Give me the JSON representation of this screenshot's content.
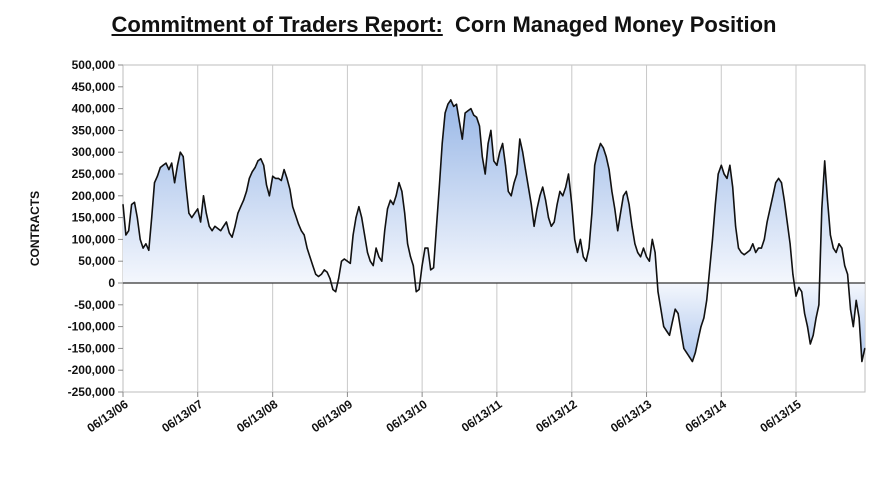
{
  "title_lead": "Commitment of Traders Report:",
  "title_rest": "Corn Managed Money Position",
  "chart_data": {
    "type": "area",
    "title": "Commitment of Traders Report: Corn Managed Money Position",
    "xlabel": "",
    "ylabel": "CONTRACTS",
    "ylim": [
      -250000,
      500000
    ],
    "y_ticks": [
      500000,
      450000,
      400000,
      350000,
      300000,
      250000,
      200000,
      150000,
      100000,
      50000,
      0,
      -50000,
      -100000,
      -150000,
      -200000,
      -250000
    ],
    "y_tick_labels": [
      "500,000",
      "450,000",
      "400,000",
      "350,000",
      "300,000",
      "250,000",
      "200,000",
      "150,000",
      "100,000",
      "50,000",
      "0",
      "-50,000",
      "-100,000",
      "-150,000",
      "-200,000",
      "-250,000"
    ],
    "xlim": [
      "06/13/06",
      "05/15/16"
    ],
    "x_ticks": [
      "06/13/06",
      "06/13/07",
      "06/13/08",
      "06/13/09",
      "06/13/10",
      "06/13/11",
      "06/13/12",
      "06/13/13",
      "06/13/14",
      "06/13/15"
    ],
    "grid": "vertical lines at x ticks",
    "fill": "gradient blue to white toward zero line",
    "series": [
      {
        "x": [
          "06/13/06",
          "06/27/06",
          "07/11/06",
          "07/25/06",
          "08/08/06",
          "08/22/06",
          "09/05/06",
          "09/19/06",
          "10/03/06",
          "10/17/06",
          "10/31/06",
          "11/14/06",
          "11/28/06",
          "12/12/06",
          "12/26/06",
          "01/09/07",
          "01/23/07",
          "02/06/07",
          "02/20/07",
          "03/06/07",
          "03/20/07",
          "04/03/07",
          "04/17/07",
          "05/01/07",
          "05/15/07",
          "05/29/07",
          "06/13/07",
          "06/27/07",
          "07/11/07",
          "07/25/07",
          "08/08/07",
          "08/22/07",
          "09/05/07",
          "09/19/07",
          "10/03/07",
          "10/17/07",
          "10/31/07",
          "11/14/07",
          "11/28/07",
          "12/12/07",
          "12/26/07",
          "01/09/08",
          "01/23/08",
          "02/06/08",
          "02/20/08",
          "03/05/08",
          "03/19/08",
          "04/02/08",
          "04/16/08",
          "04/30/08",
          "05/14/08",
          "05/28/08",
          "06/13/08",
          "06/27/08",
          "07/11/08",
          "07/25/08",
          "08/08/08",
          "08/22/08",
          "09/05/08",
          "09/19/08",
          "10/03/08",
          "10/17/08",
          "10/31/08",
          "11/14/08",
          "11/28/08",
          "12/12/08",
          "12/26/08",
          "01/09/09",
          "01/23/09",
          "02/06/09",
          "02/20/09",
          "03/06/09",
          "03/20/09",
          "04/03/09",
          "04/17/09",
          "05/01/09",
          "05/15/09",
          "05/29/09",
          "06/13/09",
          "06/27/09",
          "07/11/09",
          "07/25/09",
          "08/08/09",
          "08/22/09",
          "09/05/09",
          "09/19/09",
          "10/03/09",
          "10/17/09",
          "10/31/09",
          "11/14/09",
          "11/28/09",
          "12/12/09",
          "12/26/09",
          "01/09/10",
          "01/23/10",
          "02/06/10",
          "02/20/10",
          "03/06/10",
          "03/20/10",
          "04/03/10",
          "04/17/10",
          "05/01/10",
          "05/15/10",
          "05/29/10",
          "06/13/10",
          "06/27/10",
          "07/11/10",
          "07/25/10",
          "08/08/10",
          "08/22/10",
          "09/05/10",
          "09/19/10",
          "10/03/10",
          "10/17/10",
          "10/31/10",
          "11/14/10",
          "11/28/10",
          "12/12/10",
          "12/26/10",
          "01/09/11",
          "01/23/11",
          "02/06/11",
          "02/20/11",
          "03/06/11",
          "03/20/11",
          "04/03/11",
          "04/17/11",
          "05/01/11",
          "05/15/11",
          "05/29/11",
          "06/13/11",
          "06/27/11",
          "07/11/11",
          "07/25/11",
          "08/08/11",
          "08/22/11",
          "09/05/11",
          "09/19/11",
          "10/03/11",
          "10/17/11",
          "10/31/11",
          "11/14/11",
          "11/28/11",
          "12/12/11",
          "12/26/11",
          "01/09/12",
          "01/23/12",
          "02/06/12",
          "02/20/12",
          "03/05/12",
          "03/19/12",
          "04/02/12",
          "04/16/12",
          "04/30/12",
          "05/14/12",
          "05/28/12",
          "06/13/12",
          "06/27/12",
          "07/11/12",
          "07/25/12",
          "08/08/12",
          "08/22/12",
          "09/05/12",
          "09/19/12",
          "10/03/12",
          "10/17/12",
          "10/31/12",
          "11/14/12",
          "11/28/12",
          "12/12/12",
          "12/26/12",
          "01/09/13",
          "01/23/13",
          "02/06/13",
          "02/20/13",
          "03/06/13",
          "03/20/13",
          "04/03/13",
          "04/17/13",
          "05/01/13",
          "05/15/13",
          "05/29/13",
          "06/13/13",
          "06/27/13",
          "07/11/13",
          "07/25/13",
          "08/08/13",
          "08/22/13",
          "09/05/13",
          "09/19/13",
          "10/03/13",
          "10/17/13",
          "10/31/13",
          "11/14/13",
          "11/28/13",
          "12/12/13",
          "12/26/13",
          "01/09/14",
          "01/23/14",
          "02/06/14",
          "02/20/14",
          "03/06/14",
          "03/20/14",
          "04/03/14",
          "04/17/14",
          "05/01/14",
          "05/15/14",
          "05/29/14",
          "06/13/14",
          "06/27/14",
          "07/11/14",
          "07/25/14",
          "08/08/14",
          "08/22/14",
          "09/05/14",
          "09/19/14",
          "10/03/14",
          "10/17/14",
          "10/31/14",
          "11/14/14",
          "11/28/14",
          "12/12/14",
          "12/26/14",
          "01/09/15",
          "01/23/15",
          "02/06/15",
          "02/20/15",
          "03/06/15",
          "03/20/15",
          "04/03/15",
          "04/17/15",
          "05/01/15",
          "05/15/15",
          "05/29/15",
          "06/13/15",
          "06/27/15",
          "07/11/15",
          "07/25/15",
          "08/08/15",
          "08/22/15",
          "09/05/15",
          "09/19/15",
          "10/03/15",
          "10/17/15",
          "10/31/15",
          "11/14/15",
          "11/28/15",
          "12/12/15",
          "12/26/15",
          "01/09/16",
          "01/23/16",
          "02/06/16",
          "02/20/16",
          "03/05/16",
          "03/19/16",
          "04/02/16",
          "04/16/16",
          "04/30/16",
          "05/14/16"
        ],
        "values": [
          180000,
          110000,
          120000,
          180000,
          185000,
          150000,
          100000,
          80000,
          90000,
          75000,
          150000,
          230000,
          245000,
          265000,
          270000,
          275000,
          260000,
          275000,
          230000,
          270000,
          300000,
          290000,
          220000,
          160000,
          150000,
          160000,
          170000,
          140000,
          200000,
          160000,
          130000,
          120000,
          130000,
          125000,
          120000,
          130000,
          140000,
          115000,
          105000,
          130000,
          160000,
          175000,
          190000,
          210000,
          240000,
          255000,
          265000,
          280000,
          285000,
          270000,
          225000,
          200000,
          245000,
          240000,
          240000,
          235000,
          260000,
          240000,
          215000,
          175000,
          155000,
          135000,
          120000,
          110000,
          80000,
          60000,
          40000,
          20000,
          15000,
          20000,
          30000,
          25000,
          10000,
          -15000,
          -20000,
          10000,
          50000,
          55000,
          50000,
          45000,
          110000,
          150000,
          175000,
          150000,
          110000,
          70000,
          50000,
          40000,
          80000,
          60000,
          50000,
          120000,
          170000,
          190000,
          180000,
          200000,
          230000,
          210000,
          160000,
          90000,
          60000,
          40000,
          -20000,
          -15000,
          40000,
          80000,
          80000,
          30000,
          35000,
          130000,
          220000,
          320000,
          390000,
          410000,
          420000,
          405000,
          410000,
          370000,
          330000,
          390000,
          395000,
          400000,
          385000,
          380000,
          360000,
          290000,
          250000,
          320000,
          350000,
          280000,
          270000,
          300000,
          320000,
          270000,
          210000,
          200000,
          230000,
          250000,
          330000,
          300000,
          260000,
          220000,
          180000,
          130000,
          170000,
          200000,
          220000,
          190000,
          150000,
          130000,
          140000,
          180000,
          210000,
          200000,
          220000,
          250000,
          180000,
          100000,
          70000,
          100000,
          60000,
          50000,
          80000,
          160000,
          270000,
          300000,
          320000,
          310000,
          290000,
          260000,
          210000,
          170000,
          120000,
          160000,
          200000,
          210000,
          180000,
          130000,
          90000,
          70000,
          60000,
          80000,
          60000,
          50000,
          100000,
          70000,
          -20000,
          -60000,
          -100000,
          -110000,
          -120000,
          -90000,
          -60000,
          -70000,
          -110000,
          -150000,
          -160000,
          -170000,
          -180000,
          -160000,
          -130000,
          -100000,
          -80000,
          -40000,
          30000,
          100000,
          180000,
          250000,
          270000,
          250000,
          240000,
          270000,
          220000,
          130000,
          80000,
          70000,
          65000,
          70000,
          75000,
          90000,
          70000,
          80000,
          80000,
          100000,
          140000,
          170000,
          200000,
          230000,
          240000,
          230000,
          190000,
          140000,
          90000,
          20000,
          -30000,
          -10000,
          -20000,
          -70000,
          -100000,
          -140000,
          -120000,
          -80000,
          -50000,
          170000,
          280000,
          190000,
          110000,
          80000,
          70000,
          90000,
          80000,
          40000,
          20000,
          -60000,
          -100000,
          -40000,
          -80000,
          -180000,
          -150000
        ]
      }
    ]
  }
}
